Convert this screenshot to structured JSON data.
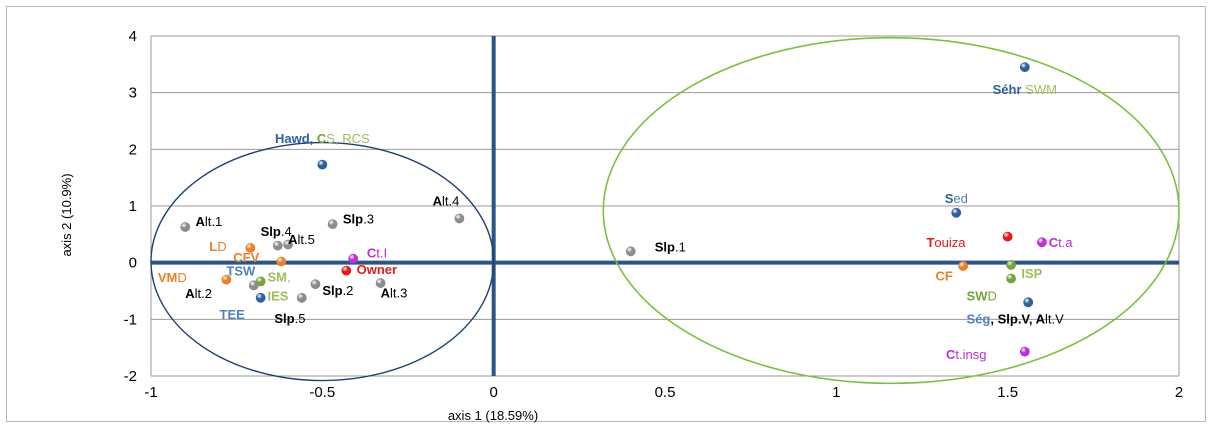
{
  "chart_data": {
    "type": "scatter",
    "xlabel": "axis 1 (18.59%)",
    "ylabel": "axis 2 (10.9%)",
    "xlim": [
      -1,
      2
    ],
    "ylim": [
      -2,
      4
    ],
    "x_ticks": [
      -1,
      -0.5,
      0,
      0.5,
      1,
      1.5,
      2
    ],
    "y_ticks": [
      4,
      3,
      2,
      1,
      0,
      -1,
      -2
    ],
    "x_tick_labels": [
      "-1",
      "-0.5",
      "0",
      "0.5",
      "1",
      "1.5",
      "2"
    ],
    "y_tick_labels": [
      "4",
      "3",
      "2",
      "1",
      "0",
      "-1",
      "-2"
    ],
    "grid": "horizontal",
    "colors": {
      "axis_line": "#2a5586",
      "grid": "#9a9a9a",
      "left_ellipse": "#1f3f6e",
      "right_ellipse": "#7ac142"
    },
    "points": [
      {
        "x": 1.55,
        "y": 3.45,
        "color": "#2f5f9e"
      },
      {
        "x": -0.5,
        "y": 1.73,
        "color": "#2f5f9e"
      },
      {
        "x": -0.1,
        "y": 0.78,
        "color": "#8c8c8c"
      },
      {
        "x": -0.9,
        "y": 0.63,
        "color": "#8c8c8c"
      },
      {
        "x": -0.47,
        "y": 0.68,
        "color": "#8c8c8c"
      },
      {
        "x": -0.6,
        "y": 0.32,
        "color": "#8c8c8c"
      },
      {
        "x": -0.63,
        "y": 0.3,
        "color": "#8c8c8c"
      },
      {
        "x": -0.71,
        "y": 0.26,
        "color": "#ec7f2c"
      },
      {
        "x": -0.41,
        "y": 0.07,
        "color": "#c02ed8"
      },
      {
        "x": -0.62,
        "y": 0.02,
        "color": "#ec7f2c"
      },
      {
        "x": -0.43,
        "y": -0.14,
        "color": "#e41a1c"
      },
      {
        "x": -0.78,
        "y": -0.3,
        "color": "#ec7f2c"
      },
      {
        "x": -0.68,
        "y": -0.33,
        "color": "#76a33b"
      },
      {
        "x": -0.7,
        "y": -0.4,
        "color": "#8c8c8c"
      },
      {
        "x": -0.52,
        "y": -0.38,
        "color": "#8c8c8c"
      },
      {
        "x": -0.33,
        "y": -0.36,
        "color": "#8c8c8c"
      },
      {
        "x": -0.56,
        "y": -0.62,
        "color": "#8c8c8c"
      },
      {
        "x": -0.68,
        "y": -0.62,
        "color": "#2f5f9e"
      },
      {
        "x": 0.4,
        "y": 0.2,
        "color": "#8c8c8c"
      },
      {
        "x": 1.35,
        "y": 0.88,
        "color": "#2f5f9e"
      },
      {
        "x": 1.5,
        "y": 0.46,
        "color": "#e41a1c"
      },
      {
        "x": 1.6,
        "y": 0.36,
        "color": "#c02ed8"
      },
      {
        "x": 1.37,
        "y": -0.06,
        "color": "#ec7f2c"
      },
      {
        "x": 1.51,
        "y": -0.04,
        "color": "#76a33b"
      },
      {
        "x": 1.51,
        "y": -0.28,
        "color": "#76a33b"
      },
      {
        "x": 1.56,
        "y": -0.7,
        "color": "#2f5f9e"
      },
      {
        "x": 1.55,
        "y": -1.57,
        "color": "#c02ed8"
      }
    ],
    "labels": [
      {
        "x": 1.55,
        "y": 3.05,
        "anchor": "middle",
        "parts": [
          {
            "t": "Séhr",
            "c": "#2f5f9e",
            "b": true
          },
          {
            "t": " SWM",
            "c": "#9dbf5a",
            "b": false
          }
        ]
      },
      {
        "x": -0.5,
        "y": 2.18,
        "anchor": "middle",
        "parts": [
          {
            "t": "Hawd, ",
            "c": "#2f5f9e",
            "b": true
          },
          {
            "t": "C",
            "c": "#76a33b",
            "b": true
          },
          {
            "t": "S, RCS",
            "c": "#9dbf5a",
            "b": false
          }
        ]
      },
      {
        "x": -0.1,
        "y": 1.08,
        "anchor": "end",
        "parts": [
          {
            "t": "A",
            "c": "#000000",
            "b": true
          },
          {
            "t": "lt.4",
            "c": "#000000",
            "b": false
          }
        ]
      },
      {
        "x": -0.87,
        "y": 0.72,
        "anchor": "start",
        "parts": [
          {
            "t": "A",
            "c": "#000000",
            "b": true
          },
          {
            "t": "lt.1",
            "c": "#000000",
            "b": false
          }
        ]
      },
      {
        "x": -0.44,
        "y": 0.76,
        "anchor": "start",
        "parts": [
          {
            "t": "Slp",
            "c": "#000000",
            "b": true
          },
          {
            "t": ".3",
            "c": "#000000",
            "b": false
          }
        ]
      },
      {
        "x": -0.68,
        "y": 0.54,
        "anchor": "start",
        "parts": [
          {
            "t": "Slp",
            "c": "#000000",
            "b": true
          },
          {
            "t": ".4",
            "c": "#000000",
            "b": false
          }
        ]
      },
      {
        "x": -0.83,
        "y": 0.28,
        "anchor": "start",
        "parts": [
          {
            "t": "L",
            "c": "#ec7f2c",
            "b": true
          },
          {
            "t": "D",
            "c": "#ec7f2c",
            "b": false
          }
        ]
      },
      {
        "x": -0.6,
        "y": 0.4,
        "anchor": "start",
        "parts": [
          {
            "t": "A",
            "c": "#000000",
            "b": true
          },
          {
            "t": "lt.5",
            "c": "#000000",
            "b": false
          }
        ]
      },
      {
        "x": -0.37,
        "y": 0.16,
        "anchor": "start",
        "parts": [
          {
            "t": "C",
            "c": "#c02ed8",
            "b": true
          },
          {
            "t": "t.I",
            "c": "#c02ed8",
            "b": false
          }
        ]
      },
      {
        "x": -0.76,
        "y": 0.08,
        "anchor": "start",
        "parts": [
          {
            "t": "CFV",
            "c": "#ec7f2c",
            "b": true
          }
        ]
      },
      {
        "x": -0.4,
        "y": -0.13,
        "anchor": "start",
        "parts": [
          {
            "t": "Owner",
            "c": "#e41a1c",
            "b": true
          }
        ]
      },
      {
        "x": -0.98,
        "y": -0.27,
        "anchor": "start",
        "parts": [
          {
            "t": "VM",
            "c": "#ec7f2c",
            "b": true
          },
          {
            "t": "D",
            "c": "#ec7f2c",
            "b": false
          }
        ]
      },
      {
        "x": -0.78,
        "y": -0.16,
        "anchor": "start",
        "parts": [
          {
            "t": "TSW",
            "c": "#4f81bd",
            "b": true
          }
        ]
      },
      {
        "x": -0.66,
        "y": -0.26,
        "anchor": "start",
        "parts": [
          {
            "t": "SM",
            "c": "#9dbf5a",
            "b": true
          },
          {
            "t": ",",
            "c": "#9dbf5a",
            "b": false
          }
        ]
      },
      {
        "x": -0.9,
        "y": -0.55,
        "anchor": "start",
        "parts": [
          {
            "t": "A",
            "c": "#000000",
            "b": true
          },
          {
            "t": "lt.2",
            "c": "#000000",
            "b": false
          }
        ]
      },
      {
        "x": -0.5,
        "y": -0.5,
        "anchor": "start",
        "parts": [
          {
            "t": "Slp",
            "c": "#000000",
            "b": true
          },
          {
            "t": ".2",
            "c": "#000000",
            "b": false
          }
        ]
      },
      {
        "x": -0.66,
        "y": -0.6,
        "anchor": "start",
        "parts": [
          {
            "t": "IES",
            "c": "#9dbf5a",
            "b": true
          }
        ]
      },
      {
        "x": -0.33,
        "y": -0.54,
        "anchor": "start",
        "parts": [
          {
            "t": "A",
            "c": "#000000",
            "b": true
          },
          {
            "t": "lt.3",
            "c": "#000000",
            "b": false
          }
        ]
      },
      {
        "x": -0.8,
        "y": -0.92,
        "anchor": "start",
        "parts": [
          {
            "t": "TEE",
            "c": "#4f81bd",
            "b": true
          }
        ]
      },
      {
        "x": -0.64,
        "y": -0.99,
        "anchor": "start",
        "parts": [
          {
            "t": "Slp",
            "c": "#000000",
            "b": true
          },
          {
            "t": ".5",
            "c": "#000000",
            "b": false
          }
        ]
      },
      {
        "x": 0.47,
        "y": 0.27,
        "anchor": "start",
        "parts": [
          {
            "t": "Slp",
            "c": "#000000",
            "b": true
          },
          {
            "t": ".1",
            "c": "#000000",
            "b": false
          }
        ]
      },
      {
        "x": 1.35,
        "y": 1.12,
        "anchor": "middle",
        "parts": [
          {
            "t": "S",
            "c": "#2f5f9e",
            "b": true
          },
          {
            "t": "ed",
            "c": "#4f81bd",
            "b": false
          }
        ]
      },
      {
        "x": 1.32,
        "y": 0.35,
        "anchor": "middle",
        "parts": [
          {
            "t": "T",
            "c": "#e41a1c",
            "b": true
          },
          {
            "t": "ouiza",
            "c": "#e41a1c",
            "b": false
          }
        ]
      },
      {
        "x": 1.62,
        "y": 0.35,
        "anchor": "start",
        "parts": [
          {
            "t": "C",
            "c": "#c02ed8",
            "b": true
          },
          {
            "t": "t.a",
            "c": "#c02ed8",
            "b": false
          }
        ]
      },
      {
        "x": 1.34,
        "y": -0.24,
        "anchor": "end",
        "parts": [
          {
            "t": "CF",
            "c": "#ec7f2c",
            "b": true
          }
        ]
      },
      {
        "x": 1.54,
        "y": -0.2,
        "anchor": "start",
        "parts": [
          {
            "t": "ISP",
            "c": "#9dbf5a",
            "b": true
          }
        ]
      },
      {
        "x": 1.38,
        "y": -0.6,
        "anchor": "start",
        "parts": [
          {
            "t": "SW",
            "c": "#76a33b",
            "b": true
          },
          {
            "t": "D",
            "c": "#76a33b",
            "b": false
          }
        ]
      },
      {
        "x": 1.38,
        "y": -1.0,
        "anchor": "start",
        "parts": [
          {
            "t": "Ség",
            "c": "#4f81bd",
            "b": true
          },
          {
            "t": ", Slp.V, A",
            "c": "#000000",
            "b": true
          },
          {
            "t": "lt.V",
            "c": "#000000",
            "b": false
          }
        ]
      },
      {
        "x": 1.32,
        "y": -1.63,
        "anchor": "start",
        "parts": [
          {
            "t": "C",
            "c": "#c02ed8",
            "b": true
          },
          {
            "t": "t.insg",
            "c": "#c02ed8",
            "b": false
          }
        ]
      }
    ],
    "ellipses": [
      {
        "cx": -0.5,
        "cy": 0.02,
        "rx": 0.5,
        "ry": 2.1,
        "color": "#1f3f6e",
        "width": 1.4
      },
      {
        "cx": 1.16,
        "cy": 0.92,
        "rx": 0.84,
        "ry": 3.05,
        "color": "#7ac142",
        "width": 1.6
      }
    ]
  }
}
